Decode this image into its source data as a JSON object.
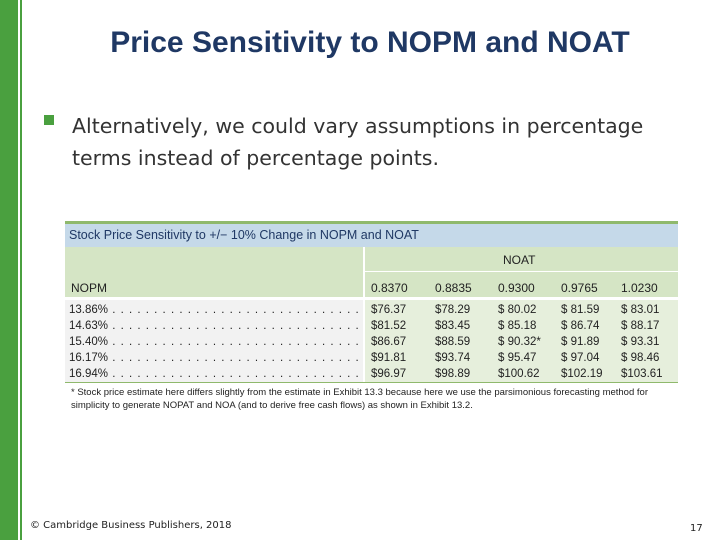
{
  "slide": {
    "title": "Price Sensitivity to NOPM and NOAT",
    "bullet": "Alternatively, we could vary assumptions in percentage terms instead of percentage points.",
    "footer_copyright": "© Cambridge Business Publishers, 2018",
    "page_number": "17"
  },
  "exhibit": {
    "caption": "Stock Price Sensitivity to +/− 10% Change in NOPM and NOAT",
    "noat_label": "NOAT",
    "nopm_label": "NOPM",
    "noat_values": [
      "0.8370",
      "0.8835",
      "0.9300",
      "0.9765",
      "1.0230"
    ],
    "rows": [
      {
        "nopm": "13.86%",
        "prices": [
          "$76.37",
          "$78.29",
          "$ 80.02",
          "$ 81.59",
          "$ 83.01"
        ]
      },
      {
        "nopm": "14.63%",
        "prices": [
          "$81.52",
          "$83.45",
          "$ 85.18",
          "$ 86.74",
          "$ 88.17"
        ]
      },
      {
        "nopm": "15.40%",
        "prices": [
          "$86.67",
          "$88.59",
          "$ 90.32*",
          "$ 91.89",
          "$ 93.31"
        ]
      },
      {
        "nopm": "16.17%",
        "prices": [
          "$91.81",
          "$93.74",
          "$ 95.47",
          "$ 97.04",
          "$ 98.46"
        ]
      },
      {
        "nopm": "16.94%",
        "prices": [
          "$96.97",
          "$98.89",
          "$100.62",
          "$102.19",
          "$103.61"
        ]
      }
    ],
    "footnote": "* Stock price estimate here differs slightly from the estimate in Exhibit 13.3 because here we use the parsimonious forecasting method for simplicity to generate NOPAT and NOA (and to derive free cash flows) as shown in Exhibit 13.2."
  },
  "colors": {
    "accent_green": "#4aa03f",
    "title_navy": "#1f3864",
    "caption_blue": "#c5d9e9",
    "header_green": "#d5e5c5",
    "body_green": "#e6efdc"
  }
}
